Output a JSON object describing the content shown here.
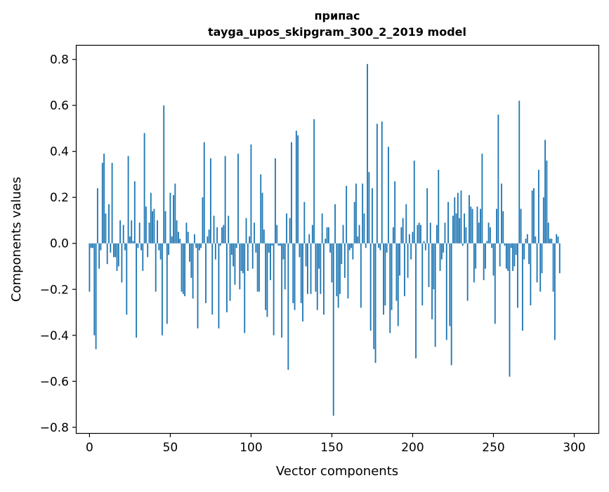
{
  "chart_data": {
    "type": "bar",
    "title": "припас",
    "subtitle": "tayga_upos_skipgram_300_2_2019 model",
    "xlabel": "Vector components",
    "ylabel": "Components values",
    "xlim": [
      -8,
      315
    ],
    "ylim": [
      -0.825,
      0.86
    ],
    "xticks": [
      0,
      50,
      100,
      150,
      200,
      250,
      300
    ],
    "xtick_labels": [
      "0",
      "50",
      "100",
      "150",
      "200",
      "250",
      "300"
    ],
    "yticks": [
      -0.8,
      -0.6,
      -0.4,
      -0.2,
      0.0,
      0.2,
      0.4,
      0.6,
      0.8
    ],
    "ytick_labels": [
      "−0.8",
      "−0.6",
      "−0.4",
      "−0.2",
      "0.0",
      "0.2",
      "0.4",
      "0.6",
      "0.8"
    ],
    "grid": false,
    "bar_color": "#1f77b4",
    "series": [
      {
        "name": "припас",
        "values": [
          -0.21,
          -0.02,
          -0.02,
          -0.4,
          -0.46,
          0.24,
          -0.11,
          -0.03,
          0.35,
          0.39,
          0.13,
          -0.09,
          0.17,
          -0.04,
          0.35,
          -0.06,
          -0.06,
          -0.12,
          -0.1,
          0.1,
          -0.17,
          0.08,
          -0.03,
          -0.31,
          0.38,
          0.03,
          0.1,
          0.01,
          0.27,
          -0.41,
          -0.02,
          0.09,
          -0.03,
          -0.12,
          0.48,
          0.16,
          -0.06,
          0.09,
          0.22,
          0.14,
          0.15,
          -0.21,
          0.1,
          -0.03,
          -0.07,
          -0.4,
          0.6,
          0.14,
          -0.35,
          -0.05,
          0.22,
          0.03,
          0.21,
          0.26,
          0.1,
          0.05,
          0.02,
          -0.21,
          -0.22,
          -0.23,
          0.09,
          0.05,
          -0.08,
          -0.15,
          -0.24,
          0.04,
          -0.02,
          -0.37,
          -0.03,
          -0.02,
          0.2,
          0.44,
          -0.26,
          0.03,
          0.06,
          0.37,
          -0.31,
          0.12,
          -0.07,
          0.07,
          -0.37,
          -0.01,
          0.07,
          0.08,
          0.38,
          -0.3,
          0.12,
          -0.25,
          -0.05,
          -0.1,
          -0.18,
          -0.02,
          0.39,
          -0.2,
          -0.12,
          -0.13,
          -0.39,
          0.11,
          -0.12,
          0.03,
          0.43,
          -0.11,
          0.09,
          -0.04,
          -0.21,
          -0.21,
          0.3,
          0.22,
          0.06,
          -0.29,
          -0.32,
          -0.04,
          -0.16,
          -0.01,
          -0.4,
          0.37,
          0.08,
          -0.01,
          -0.01,
          -0.41,
          -0.07,
          -0.2,
          0.13,
          -0.55,
          0.11,
          0.44,
          -0.26,
          -0.29,
          0.49,
          0.47,
          -0.06,
          -0.26,
          -0.34,
          0.18,
          -0.1,
          -0.22,
          0.04,
          -0.22,
          0.08,
          0.54,
          -0.21,
          -0.29,
          -0.11,
          -0.22,
          0.13,
          -0.31,
          0.02,
          0.07,
          0.07,
          -0.04,
          -0.17,
          -0.75,
          0.17,
          -0.23,
          -0.28,
          -0.22,
          -0.09,
          0.08,
          -0.15,
          0.25,
          -0.24,
          -0.03,
          -0.02,
          -0.07,
          0.18,
          0.26,
          0.03,
          0.08,
          -0.28,
          0.26,
          0.13,
          -0.02,
          0.78,
          0.31,
          -0.38,
          0.24,
          -0.46,
          -0.52,
          0.52,
          -0.02,
          -0.03,
          0.53,
          -0.31,
          -0.27,
          -0.04,
          0.42,
          -0.39,
          -0.29,
          0.07,
          0.27,
          -0.25,
          -0.36,
          -0.14,
          0.07,
          0.11,
          -0.23,
          0.17,
          -0.15,
          0.04,
          -0.07,
          0.05,
          0.36,
          -0.5,
          0.08,
          0.09,
          0.08,
          -0.27,
          0.01,
          -0.03,
          0.24,
          -0.19,
          0.09,
          -0.33,
          -0.2,
          -0.45,
          0.08,
          0.32,
          -0.12,
          -0.07,
          -0.04,
          0.09,
          -0.42,
          0.18,
          -0.36,
          -0.53,
          0.12,
          0.2,
          0.13,
          0.22,
          0.11,
          0.23,
          -0.01,
          0.13,
          0.07,
          -0.25,
          0.21,
          0.16,
          0.15,
          -0.17,
          -0.11,
          0.16,
          0.09,
          0.15,
          0.39,
          -0.16,
          -0.11,
          0.01,
          0.09,
          0.07,
          -0.02,
          -0.14,
          -0.35,
          0.15,
          0.56,
          -0.1,
          0.26,
          0.14,
          -0.01,
          -0.11,
          -0.12,
          -0.58,
          -0.02,
          -0.12,
          -0.1,
          -0.05,
          -0.28,
          0.62,
          0.15,
          -0.38,
          -0.07,
          0.02,
          0.04,
          -0.09,
          -0.27,
          0.23,
          0.24,
          0.03,
          -0.17,
          0.32,
          -0.21,
          -0.13,
          0.2,
          0.45,
          0.36,
          0.09,
          0.02,
          0.02,
          -0.21,
          -0.42,
          0.04,
          0.03,
          -0.13
        ]
      }
    ]
  }
}
